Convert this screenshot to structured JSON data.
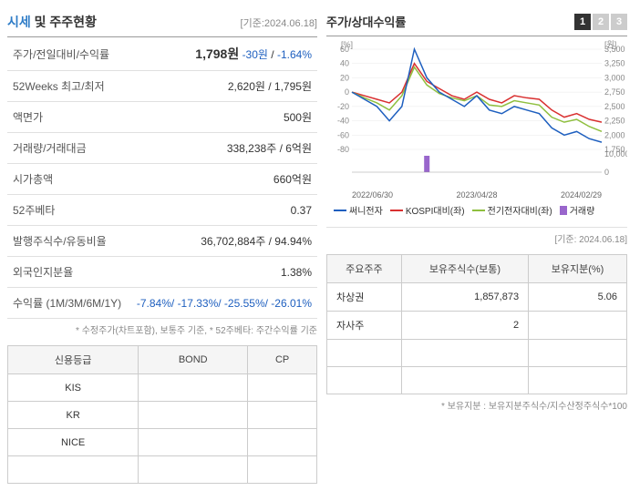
{
  "header": {
    "title_accent": "시세",
    "title_rest": " 및 주주현황",
    "date_ref": "[기준:2024.06.18]"
  },
  "price_table": {
    "rows": [
      {
        "label": "주가/전일대비/수익률",
        "value": "1,798원",
        "extra1": "-30원",
        "extra2": "-1.64%"
      },
      {
        "label": "52Weeks 최고/최저",
        "value": "2,620원 / 1,795원"
      },
      {
        "label": "액면가",
        "value": "500원"
      },
      {
        "label": "거래량/거래대금",
        "value": "338,238주 / 6억원"
      },
      {
        "label": "시가총액",
        "value": "660억원"
      },
      {
        "label": "52주베타",
        "value": "0.37"
      },
      {
        "label": "발행주식수/유동비율",
        "value": "36,702,884주 / 94.94%"
      },
      {
        "label": "외국인지분율",
        "value": "1.38%"
      },
      {
        "label": "수익률 (1M/3M/6M/1Y)",
        "value": "-7.84%/ -17.33%/ -25.55%/ -26.01%"
      }
    ],
    "footnote": "* 수정주가(차트포함), 보통주 기준, * 52주베타: 주간수익률 기준"
  },
  "chart": {
    "title": "주가/상대수익률",
    "tabs": [
      "1",
      "2",
      "3"
    ],
    "active_tab": 0,
    "left_axis_label": "[%]",
    "right_axis_label": "[원]",
    "left_ticks": [
      60,
      40,
      20,
      0,
      -20,
      -40,
      -60,
      -80
    ],
    "right_ticks": [
      3500,
      3250,
      3000,
      2750,
      2500,
      2250,
      2000,
      1750
    ],
    "left_min": -80,
    "left_max": 60,
    "right_min": 1750,
    "right_max": 3500,
    "vol_ticks": [
      "10,000,000",
      "0"
    ],
    "x_labels": [
      "2022/06/30",
      "2023/04/28",
      "2024/02/29"
    ],
    "series": {
      "sunny": {
        "color": "#1e5fbf",
        "label": "써니전자",
        "pts": [
          0,
          -10,
          -20,
          -40,
          -20,
          60,
          20,
          0,
          -10,
          -20,
          -5,
          -25,
          -30,
          -20,
          -25,
          -30,
          -50,
          -60,
          -55,
          -65,
          -70
        ]
      },
      "kospi": {
        "color": "#d93030",
        "label": "KOSPI대비(좌)",
        "pts": [
          0,
          -5,
          -10,
          -15,
          0,
          40,
          15,
          5,
          -5,
          -10,
          0,
          -10,
          -15,
          -5,
          -8,
          -10,
          -25,
          -35,
          -30,
          -38,
          -42
        ]
      },
      "sector": {
        "color": "#8fbf3f",
        "label": "전기전자대비(좌)",
        "pts": [
          0,
          -8,
          -15,
          -25,
          -5,
          35,
          10,
          -2,
          -8,
          -12,
          -5,
          -18,
          -20,
          -12,
          -15,
          -18,
          -35,
          -42,
          -38,
          -48,
          -55
        ]
      },
      "volume": {
        "color": "#9966cc",
        "label": "거래량",
        "bars": [
          0,
          0,
          0,
          0,
          0,
          0,
          0.9,
          0,
          0,
          0,
          0,
          0,
          0,
          0,
          0,
          0,
          0,
          0,
          0,
          0,
          0
        ]
      }
    },
    "grid_color": "#e8e8e8",
    "background_color": "#ffffff"
  },
  "rating_table": {
    "headers": [
      "신용등급",
      "BOND",
      "CP"
    ],
    "rows": [
      [
        "KIS",
        "",
        ""
      ],
      [
        "KR",
        "",
        ""
      ],
      [
        "NICE",
        "",
        ""
      ]
    ]
  },
  "shareholder_table": {
    "date_ref": "[기준: 2024.06.18]",
    "headers": [
      "주요주주",
      "보유주식수(보통)",
      "보유지분(%)"
    ],
    "rows": [
      [
        "차상권",
        "1,857,873",
        "5.06"
      ],
      [
        "자사주",
        "2",
        ""
      ]
    ],
    "footnote": "* 보유지분 : 보유지분주식수/지수산정주식수*100"
  }
}
